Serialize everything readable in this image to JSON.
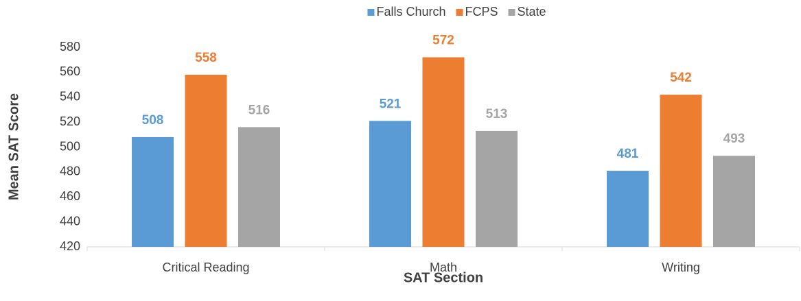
{
  "chart_data": {
    "type": "bar",
    "x_label": "SAT Section",
    "y_label": "Mean SAT Score",
    "categories": [
      "Critical Reading",
      "Math",
      "Writing"
    ],
    "series": [
      {
        "name": "Falls Church",
        "color": "#5b9bd5",
        "values": [
          508,
          521,
          481
        ]
      },
      {
        "name": "FCPS",
        "color": "#ed7d31",
        "values": [
          558,
          572,
          542
        ]
      },
      {
        "name": "State",
        "color": "#a5a5a5",
        "values": [
          516,
          513,
          493
        ]
      }
    ],
    "ylim": [
      420,
      580
    ],
    "yticks": [
      420,
      440,
      460,
      480,
      500,
      520,
      540,
      560,
      580
    ],
    "grid": false,
    "legend": "top"
  }
}
